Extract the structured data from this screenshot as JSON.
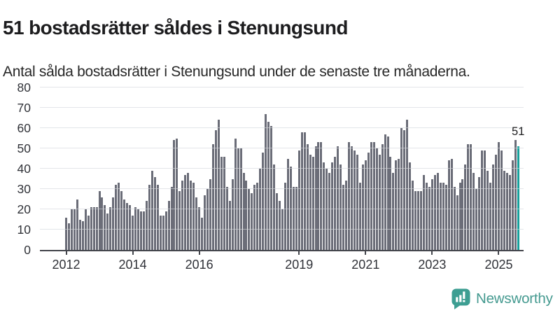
{
  "header": {
    "title": "51 bostadsrätter såldes i Stenungsund",
    "subtitle": "Antal sålda bostadsrätter i Stenungsund under de senaste tre månaderna."
  },
  "chart_data": {
    "type": "bar",
    "title": "51 bostadsrätter såldes i Stenungsund",
    "subtitle": "Antal sålda bostadsrätter i Stenungsund under de senaste tre månaderna.",
    "xlabel": "",
    "ylabel": "",
    "ylim": [
      0,
      80
    ],
    "grid": true,
    "legend": "none",
    "y_ticks": [
      0,
      10,
      20,
      30,
      40,
      50,
      60,
      70,
      80
    ],
    "x_ticks": [
      {
        "label": "2012",
        "month_index": 0
      },
      {
        "label": "2014",
        "month_index": 24
      },
      {
        "label": "2016",
        "month_index": 48
      },
      {
        "label": "2019",
        "month_index": 84
      },
      {
        "label": "2021",
        "month_index": 108
      },
      {
        "label": "2023",
        "month_index": 132
      },
      {
        "label": "2025",
        "month_index": 156
      }
    ],
    "values": [
      16,
      13,
      20,
      20,
      25,
      15,
      14,
      20,
      17,
      21,
      21,
      21,
      29,
      26,
      22,
      18,
      21,
      26,
      32,
      33,
      29,
      25,
      23,
      22,
      17,
      21,
      20,
      19,
      19,
      24,
      32,
      39,
      36,
      32,
      17,
      17,
      19,
      24,
      31,
      54,
      55,
      29,
      34,
      37,
      38,
      34,
      33,
      26,
      21,
      16,
      27,
      30,
      35,
      52,
      59,
      64,
      46,
      46,
      31,
      24,
      35,
      55,
      50,
      50,
      38,
      34,
      30,
      28,
      32,
      33,
      40,
      48,
      67,
      63,
      61,
      42,
      28,
      24,
      20,
      33,
      45,
      41,
      31,
      31,
      49,
      58,
      58,
      52,
      47,
      46,
      51,
      53,
      53,
      43,
      40,
      38,
      43,
      46,
      51,
      42,
      32,
      34,
      53,
      51,
      49,
      47,
      33,
      42,
      44,
      48,
      53,
      53,
      50,
      47,
      52,
      57,
      56,
      46,
      38,
      44,
      45,
      60,
      59,
      64,
      43,
      34,
      29,
      29,
      29,
      37,
      33,
      31,
      35,
      37,
      38,
      33,
      33,
      32,
      44,
      45,
      31,
      27,
      33,
      35,
      42,
      52,
      52,
      38,
      30,
      36,
      49,
      49,
      39,
      33,
      42,
      47,
      53,
      49,
      39,
      38,
      37,
      44,
      54,
      51
    ],
    "highlight_last_bar": true,
    "last_value": 51,
    "last_value_label": "51",
    "bar_color": "#6b6d78",
    "highlight_color": "#16a09b",
    "gridline_color": "#e3e5e9",
    "axis_color": "#43454b",
    "label_color": "#303238"
  },
  "footer": {
    "brand": "Newsworthy",
    "logo_icon": "bar-chart-speech-bubble-icon",
    "brand_color": "#459a90",
    "logo_fill": "#3d9e92"
  }
}
